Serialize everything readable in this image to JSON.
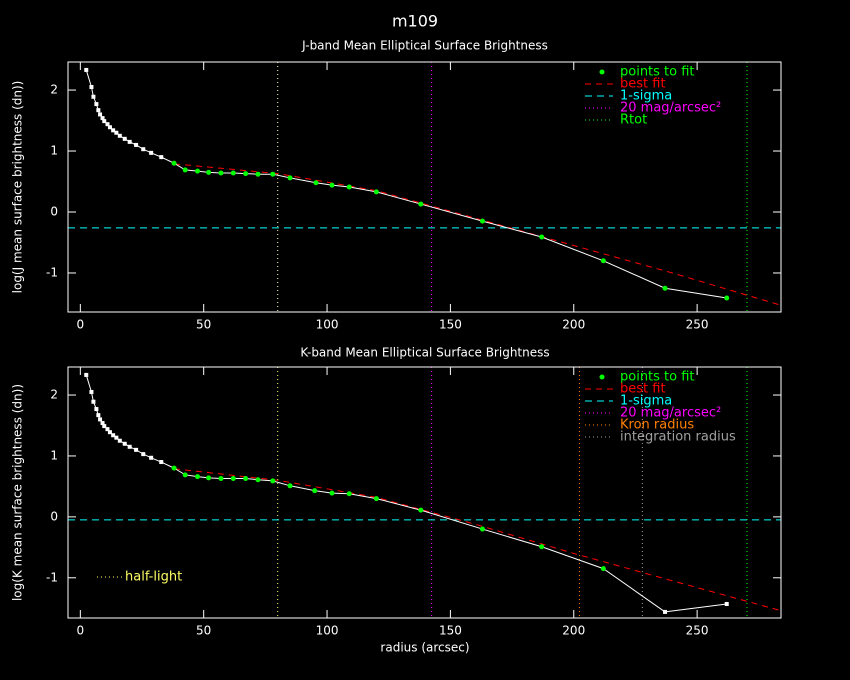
{
  "title": "m109",
  "chart_data": [
    {
      "type": "line",
      "title": "J-band Mean Elliptical Surface Brightness",
      "ylabel": "log(J mean surface brightness (dn))",
      "xlim": [
        -5,
        284
      ],
      "ylim": [
        -1.64,
        2.46
      ],
      "xticks": [
        0,
        50,
        100,
        150,
        200,
        250
      ],
      "yticks": [
        -1,
        0,
        1,
        2
      ],
      "legend": "upper right",
      "series": [
        {
          "color": "#ffffff",
          "marker": "square",
          "x": [
            2.4,
            4.5,
            5.3,
            6.5,
            7.3,
            8,
            9,
            9.7,
            11,
            12,
            13.3,
            14.6,
            16,
            18,
            20,
            22.6,
            25.5,
            28.7,
            32.8
          ],
          "values": [
            2.33,
            2.05,
            1.89,
            1.77,
            1.67,
            1.6,
            1.54,
            1.49,
            1.44,
            1.39,
            1.34,
            1.3,
            1.25,
            1.2,
            1.15,
            1.1,
            1.03,
            0.97,
            0.9
          ]
        },
        {
          "name": "points to fit",
          "color": "#00ff00",
          "marker": "dot",
          "x": [
            38,
            42.5,
            47.5,
            52,
            57,
            62,
            67,
            72,
            78,
            85,
            95.5,
            102,
            109,
            120,
            138,
            163,
            187,
            212,
            237,
            262
          ],
          "values": [
            0.8,
            0.69,
            0.67,
            0.65,
            0.64,
            0.64,
            0.63,
            0.62,
            0.62,
            0.56,
            0.48,
            0.44,
            0.41,
            0.33,
            0.13,
            -0.15,
            -0.41,
            -0.8,
            -1.25,
            -1.41
          ]
        }
      ],
      "fit": {
        "name": "best fit",
        "color": "#ff0000",
        "x": [
          38,
          80,
          120,
          160,
          200,
          240,
          284
        ],
        "values": [
          0.79,
          0.63,
          0.35,
          -0.1,
          -0.55,
          -1.0,
          -1.53
        ]
      },
      "hlines": [
        {
          "name": "1-sigma",
          "color": "#00ffff",
          "value": -0.26
        }
      ],
      "vlines": [
        {
          "color": "#ffffaa",
          "value": 80
        },
        {
          "name": "20 mag/arcsec²",
          "color": "#ff00ff",
          "value": 142.4
        },
        {
          "name": "Rtot",
          "color": "#00ff00",
          "value": 270.2
        }
      ]
    },
    {
      "type": "line",
      "title": "K-band Mean Elliptical Surface Brightness",
      "ylabel": "log(K mean surface brightness (dn))",
      "xlabel": "radius (arcsec)",
      "xlim": [
        -5,
        284
      ],
      "ylim": [
        -1.66,
        2.46
      ],
      "xticks": [
        0,
        50,
        100,
        150,
        200,
        250
      ],
      "yticks": [
        -1,
        0,
        1,
        2
      ],
      "legend": "upper right",
      "series": [
        {
          "color": "#ffffff",
          "marker": "square",
          "x": [
            2.4,
            4.5,
            5.3,
            6.5,
            7.3,
            8,
            9,
            9.7,
            11,
            12,
            13.3,
            14.6,
            16,
            18,
            20,
            22.6,
            25.5,
            28.7,
            32.8
          ],
          "values": [
            2.33,
            2.05,
            1.89,
            1.77,
            1.67,
            1.6,
            1.54,
            1.49,
            1.44,
            1.39,
            1.34,
            1.3,
            1.25,
            1.2,
            1.15,
            1.1,
            1.03,
            0.97,
            0.9
          ]
        },
        {
          "name": "points to fit",
          "color": "#00ff00",
          "marker": "dot",
          "x": [
            38,
            42.5,
            47.5,
            52,
            57,
            62,
            67,
            72,
            78,
            85,
            95,
            102,
            109,
            120,
            138,
            163,
            187,
            212
          ],
          "values": [
            0.8,
            0.69,
            0.66,
            0.64,
            0.63,
            0.63,
            0.63,
            0.61,
            0.59,
            0.51,
            0.43,
            0.39,
            0.38,
            0.3,
            0.11,
            -0.2,
            -0.49,
            -0.85
          ]
        },
        {
          "color": "#ffffff",
          "marker": "square",
          "x": [
            237,
            262
          ],
          "values": [
            -1.56,
            -1.43
          ]
        }
      ],
      "fit": {
        "name": "best fit",
        "color": "#ff0000",
        "x": [
          38,
          80,
          120,
          160,
          200,
          240,
          284
        ],
        "values": [
          0.79,
          0.6,
          0.32,
          -0.12,
          -0.6,
          -1.05,
          -1.54
        ]
      },
      "hlines": [
        {
          "name": "1-sigma",
          "color": "#00ffff",
          "value": -0.05
        }
      ],
      "vlines": [
        {
          "name": "half-light",
          "color": "#ffff66",
          "value": 80,
          "legend": "lower left"
        },
        {
          "name": "20 mag/arcsec²",
          "color": "#ff00ff",
          "value": 142.4
        },
        {
          "name": "Kron radius",
          "color": "#ff7f00",
          "value": 202.3
        },
        {
          "name": "integration radius",
          "color": "#a0a0a0",
          "value": 227.8
        },
        {
          "color": "#00ff00",
          "value": 270.2
        }
      ]
    }
  ]
}
